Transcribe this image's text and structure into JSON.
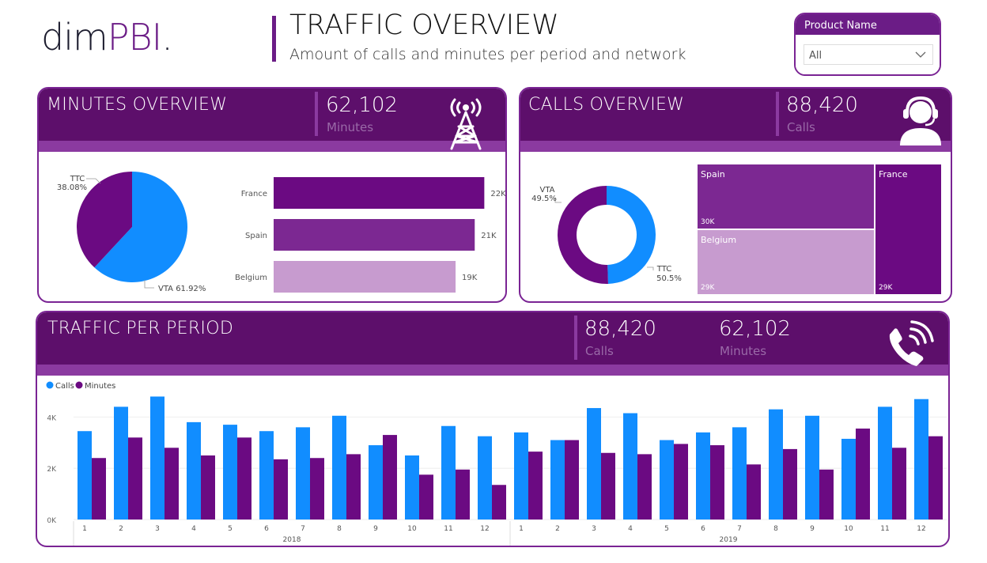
{
  "logo": {
    "part1": "dim",
    "part2": "PBI",
    "part3": "."
  },
  "header": {
    "title": "TRAFFIC OVERVIEW",
    "subtitle": "Amount of calls and minutes per period and network"
  },
  "filter": {
    "label": "Product Name",
    "value": "All",
    "icon": "chevron-down-icon"
  },
  "minutes_card": {
    "title": "MINUTES OVERVIEW",
    "kpi_value": "62,102",
    "kpi_label": "Minutes",
    "icon": "cell-tower-icon",
    "pie_labels": {
      "ttc_name": "TTC",
      "ttc_pct": "38.08%",
      "vta": "VTA 61.92%"
    },
    "bar_labels": [
      "France",
      "Spain",
      "Belgium"
    ],
    "bar_value_labels": [
      "22K",
      "21K",
      "19K"
    ]
  },
  "calls_card": {
    "title": "CALLS OVERVIEW",
    "kpi_value": "88,420",
    "kpi_label": "Calls",
    "icon": "call-agent-icon",
    "donut_labels": {
      "vta_name": "VTA",
      "vta_pct": "49.5%",
      "ttc_name": "TTC",
      "ttc_pct": "50.5%"
    },
    "treemap_labels": [
      {
        "name": "Spain",
        "value": "30K"
      },
      {
        "name": "Belgium",
        "value": "29K"
      },
      {
        "name": "France",
        "value": "29K"
      }
    ]
  },
  "traffic_card": {
    "title": "TRAFFIC PER PERIOD",
    "kpis": [
      {
        "value": "88,420",
        "label": "Calls"
      },
      {
        "value": "62,102",
        "label": "Minutes"
      }
    ],
    "icon": "phone-ringing-icon"
  },
  "colors": {
    "calls": "#118dff",
    "minutes": "#6b0a82",
    "header": "#5d0f6b",
    "band": "#8b3aa0",
    "spain": "#7c2892",
    "belgium": "#c79bcf",
    "france": "#6b0a82"
  },
  "chart_data": [
    {
      "type": "pie",
      "categories": [
        "VTA",
        "TTC"
      ],
      "values": [
        61.92,
        38.08
      ],
      "colors": [
        "#118dff",
        "#6b0a82"
      ]
    },
    {
      "type": "bar",
      "orientation": "horizontal",
      "categories": [
        "France",
        "Spain",
        "Belgium"
      ],
      "values": [
        22,
        21,
        19
      ],
      "colors": [
        "#6b0a82",
        "#7c2892",
        "#c79bcf"
      ],
      "data_labels": [
        "22K",
        "21K",
        "19K"
      ]
    },
    {
      "type": "pie",
      "donut": true,
      "categories": [
        "VTA",
        "TTC"
      ],
      "values": [
        49.5,
        50.5
      ],
      "colors": [
        "#118dff",
        "#6b0a82"
      ]
    },
    {
      "type": "treemap",
      "categories": [
        "Spain",
        "Belgium",
        "France"
      ],
      "values": [
        30,
        29,
        29
      ],
      "data_labels": [
        "30K",
        "29K",
        "29K"
      ],
      "colors": [
        "#7c2892",
        "#c79bcf",
        "#6b0a82"
      ]
    },
    {
      "type": "bar",
      "categories": [
        "1",
        "2",
        "3",
        "4",
        "5",
        "6",
        "7",
        "8",
        "9",
        "10",
        "11",
        "12",
        "1",
        "2",
        "3",
        "4",
        "5",
        "6",
        "7",
        "8",
        "9",
        "10",
        "11",
        "12"
      ],
      "groups": [
        {
          "label": "2018",
          "count": 12
        },
        {
          "label": "2019",
          "count": 12
        }
      ],
      "series": [
        {
          "name": "Calls",
          "values": [
            3.45,
            4.4,
            4.8,
            3.8,
            3.7,
            3.45,
            3.6,
            4.05,
            2.9,
            2.5,
            3.65,
            3.25,
            3.4,
            3.1,
            4.35,
            4.15,
            3.1,
            3.4,
            3.6,
            4.3,
            4.05,
            3.15,
            4.4,
            4.7
          ]
        },
        {
          "name": "Minutes",
          "values": [
            2.4,
            3.2,
            2.8,
            2.5,
            3.2,
            2.35,
            2.4,
            2.55,
            3.3,
            1.75,
            1.95,
            1.35,
            2.65,
            3.1,
            2.6,
            2.55,
            2.95,
            2.9,
            2.15,
            2.75,
            1.95,
            3.55,
            2.8,
            3.25
          ]
        }
      ],
      "yticks": [
        "0K",
        "2K",
        "4K"
      ],
      "ylim": [
        0,
        5
      ],
      "legend": "top-left"
    }
  ]
}
